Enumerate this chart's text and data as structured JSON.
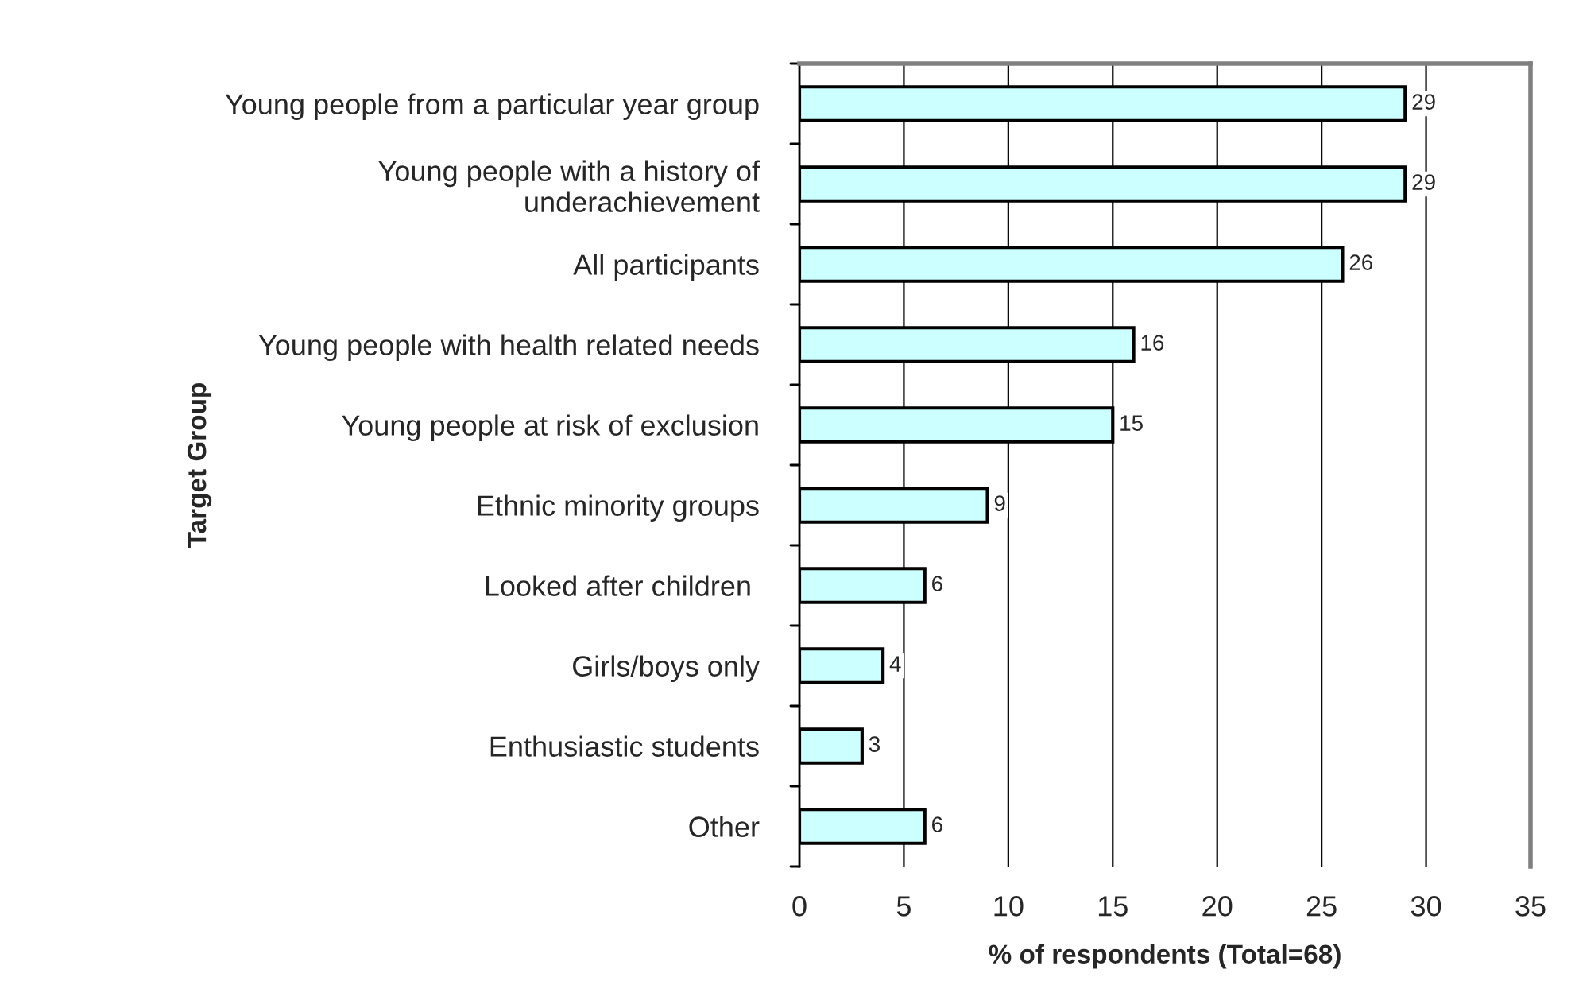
{
  "chart_data": {
    "type": "bar",
    "orientation": "horizontal",
    "categories": [
      "Young people from a particular year group",
      "Young people with a history of\nunderachievement",
      "All participants",
      "Young people with health related needs",
      "Young people at risk of exclusion",
      "Ethnic minority groups",
      "Looked after children ",
      "Girls/boys only",
      "Enthusiastic students",
      "Other"
    ],
    "values": [
      29,
      29,
      26,
      16,
      15,
      9,
      6,
      4,
      3,
      6
    ],
    "color": "#ccffff",
    "xlim": [
      0,
      35
    ],
    "xticks": [
      0,
      5,
      10,
      15,
      20,
      25,
      30,
      35
    ],
    "xlabel": "% of respondents (Total=68)",
    "ylabel": "Target Group",
    "grid": "x",
    "data_labels": true
  }
}
